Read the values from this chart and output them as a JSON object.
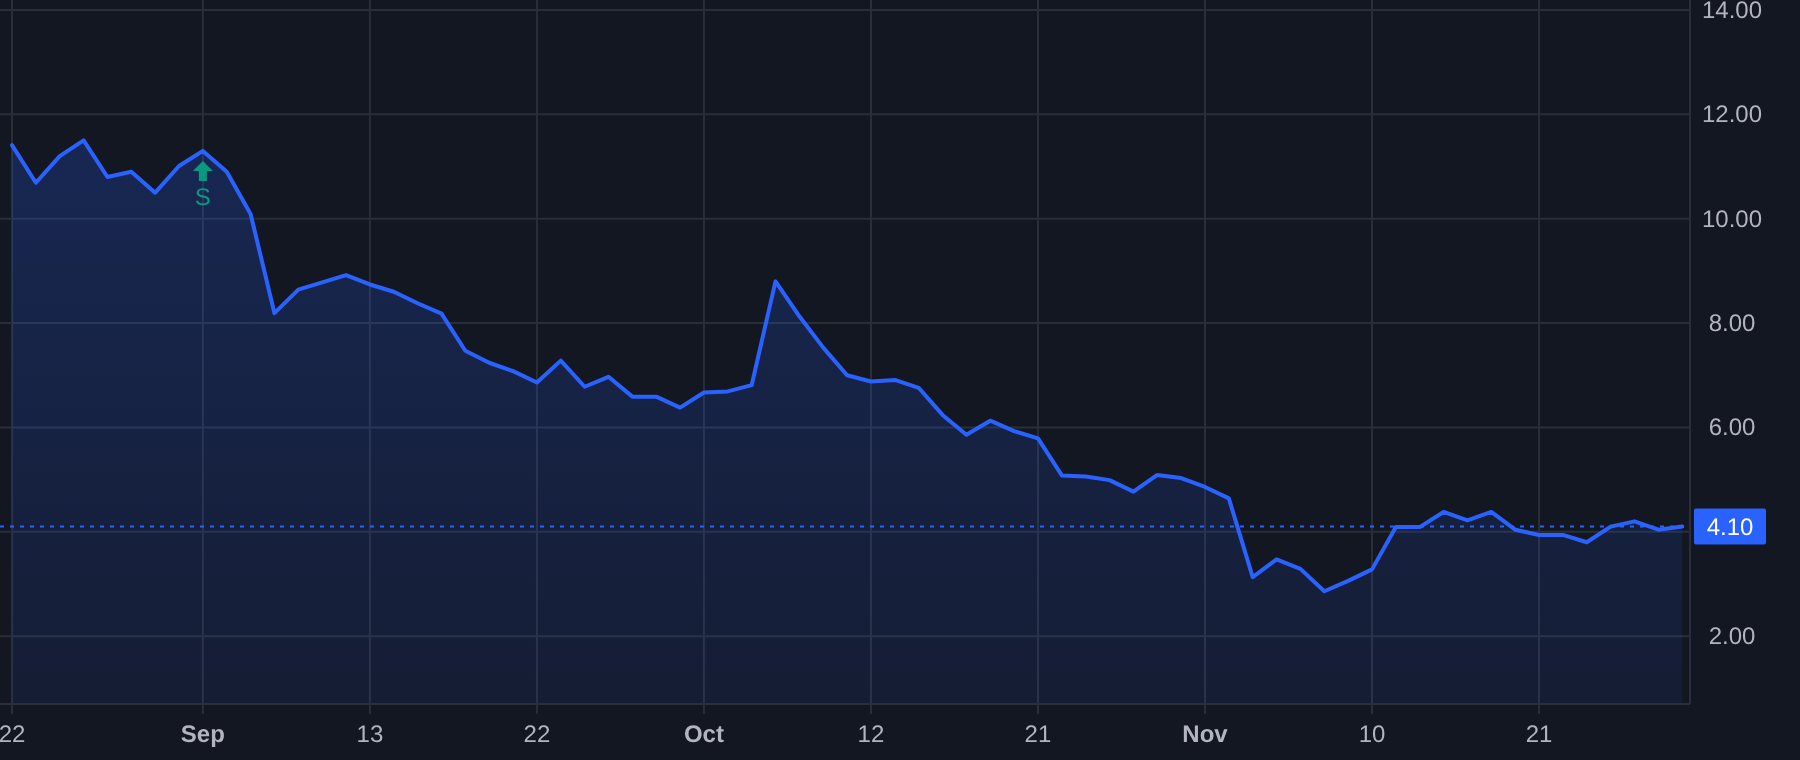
{
  "chart_data": {
    "type": "area",
    "categories": [
      "22",
      null,
      null,
      null,
      null,
      null,
      null,
      null,
      "Sep",
      null,
      null,
      null,
      null,
      null,
      null,
      "13",
      null,
      null,
      null,
      null,
      null,
      null,
      "22",
      null,
      null,
      null,
      null,
      null,
      null,
      "Oct",
      null,
      null,
      null,
      null,
      null,
      null,
      "12",
      null,
      null,
      null,
      null,
      null,
      null,
      "21",
      null,
      null,
      null,
      null,
      null,
      null,
      "Nov",
      null,
      null,
      null,
      null,
      null,
      null,
      "10",
      null,
      null,
      null,
      null,
      null,
      null,
      "21",
      null,
      null,
      null,
      null,
      null,
      null
    ],
    "series": [
      {
        "color": "#2962ff",
        "values": [
          11.41,
          10.69,
          11.2,
          11.5,
          10.8,
          10.9,
          10.5,
          11.01,
          11.3,
          10.9,
          10.09,
          8.19,
          8.64,
          8.78,
          8.92,
          8.74,
          8.6,
          8.38,
          8.18,
          7.47,
          7.24,
          7.08,
          6.86,
          7.28,
          6.78,
          6.97,
          6.59,
          6.59,
          6.38,
          6.67,
          6.69,
          6.81,
          8.8,
          8.13,
          7.53,
          7.0,
          6.88,
          6.91,
          6.76,
          6.24,
          5.86,
          6.13,
          5.93,
          5.79,
          5.08,
          5.06,
          4.99,
          4.77,
          5.09,
          5.03,
          4.86,
          4.64,
          3.13,
          3.47,
          3.29,
          2.86,
          3.06,
          3.28,
          4.09,
          4.09,
          4.38,
          4.22,
          4.38,
          4.04,
          3.94,
          3.94,
          3.8,
          4.1,
          4.2,
          4.04,
          4.1
        ]
      }
    ],
    "ylim": [
      0.7,
      14.0
    ],
    "yticks": [
      {
        "value": 2,
        "label": "2.00"
      },
      {
        "value": 4,
        "label": null
      },
      {
        "value": 6,
        "label": "6.00"
      },
      {
        "value": 8,
        "label": "8.00"
      },
      {
        "value": 10,
        "label": "10.00"
      },
      {
        "value": 12,
        "label": "12.00"
      },
      {
        "value": 14,
        "label": "14.00"
      }
    ],
    "grid": true,
    "ref_lines": [
      {
        "axis": "y",
        "value": 4.1,
        "label": "4.10",
        "color": "#2962ff",
        "line_style": "dotted"
      }
    ],
    "annotations": [
      {
        "text": "S",
        "x": "Sep",
        "y": 11.3
      }
    ]
  }
}
